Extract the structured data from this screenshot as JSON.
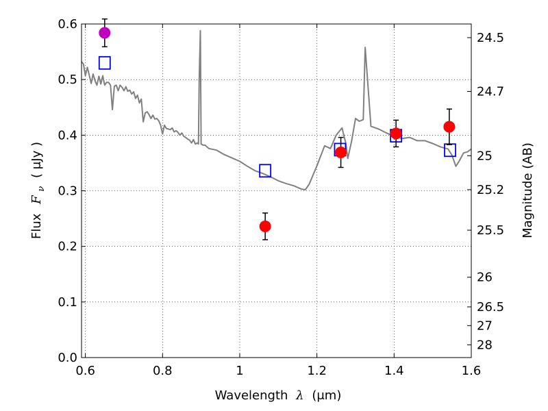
{
  "chart_data": {
    "type": "scatter",
    "xlabel_text": "Wavelength",
    "xlabel_symbol": "λ",
    "xlabel_unit": "(μm)",
    "ylabel_text": "Flux",
    "ylabel_symbol": "F",
    "ylabel_sub": "ν",
    "ylabel_unit": "( μJy )",
    "y2label": "Magnitude (AB)",
    "xlim": [
      0.59,
      1.6
    ],
    "ylim": [
      0.0,
      0.6
    ],
    "grid": true,
    "x_ticks": [
      {
        "value": 0.6,
        "label": "0.6"
      },
      {
        "value": 0.8,
        "label": "0.8"
      },
      {
        "value": 1.0,
        "label": "1"
      },
      {
        "value": 1.2,
        "label": "1.2"
      },
      {
        "value": 1.4,
        "label": "1.4"
      },
      {
        "value": 1.6,
        "label": "1.6"
      }
    ],
    "y_ticks": [
      {
        "value": 0.0,
        "label": "0.0"
      },
      {
        "value": 0.1,
        "label": "0.1"
      },
      {
        "value": 0.2,
        "label": "0.2"
      },
      {
        "value": 0.3,
        "label": "0.3"
      },
      {
        "value": 0.4,
        "label": "0.4"
      },
      {
        "value": 0.5,
        "label": "0.5"
      },
      {
        "value": 0.6,
        "label": "0.6"
      }
    ],
    "y2_ticks": [
      {
        "flux": 0.5754,
        "label": "24.5"
      },
      {
        "flux": 0.4786,
        "label": "24.7"
      },
      {
        "flux": 0.3631,
        "label": "25"
      },
      {
        "flux": 0.302,
        "label": "25.2"
      },
      {
        "flux": 0.2291,
        "label": "25.5"
      },
      {
        "flux": 0.1445,
        "label": "26"
      },
      {
        "flux": 0.0912,
        "label": "26.5"
      },
      {
        "flux": 0.0575,
        "label": "27"
      },
      {
        "flux": 0.0229,
        "label": "28"
      }
    ],
    "series": [
      {
        "kind": "line",
        "color": "#808080",
        "points": [
          [
            0.59,
            0.532
          ],
          [
            0.595,
            0.528
          ],
          [
            0.6,
            0.507
          ],
          [
            0.605,
            0.522
          ],
          [
            0.61,
            0.508
          ],
          [
            0.615,
            0.493
          ],
          [
            0.62,
            0.51
          ],
          [
            0.625,
            0.498
          ],
          [
            0.63,
            0.49
          ],
          [
            0.635,
            0.506
          ],
          [
            0.64,
            0.492
          ],
          [
            0.645,
            0.507
          ],
          [
            0.65,
            0.49
          ],
          [
            0.655,
            0.495
          ],
          [
            0.66,
            0.495
          ],
          [
            0.665,
            0.49
          ],
          [
            0.67,
            0.446
          ],
          [
            0.675,
            0.488
          ],
          [
            0.68,
            0.49
          ],
          [
            0.685,
            0.48
          ],
          [
            0.69,
            0.49
          ],
          [
            0.695,
            0.486
          ],
          [
            0.7,
            0.48
          ],
          [
            0.705,
            0.487
          ],
          [
            0.71,
            0.479
          ],
          [
            0.715,
            0.481
          ],
          [
            0.72,
            0.474
          ],
          [
            0.725,
            0.478
          ],
          [
            0.73,
            0.466
          ],
          [
            0.735,
            0.472
          ],
          [
            0.74,
            0.458
          ],
          [
            0.745,
            0.465
          ],
          [
            0.75,
            0.424
          ],
          [
            0.755,
            0.44
          ],
          [
            0.76,
            0.442
          ],
          [
            0.765,
            0.437
          ],
          [
            0.77,
            0.43
          ],
          [
            0.775,
            0.436
          ],
          [
            0.78,
            0.429
          ],
          [
            0.785,
            0.43
          ],
          [
            0.79,
            0.426
          ],
          [
            0.795,
            0.418
          ],
          [
            0.8,
            0.402
          ],
          [
            0.805,
            0.418
          ],
          [
            0.81,
            0.412
          ],
          [
            0.815,
            0.411
          ],
          [
            0.82,
            0.41
          ],
          [
            0.825,
            0.413
          ],
          [
            0.83,
            0.406
          ],
          [
            0.835,
            0.408
          ],
          [
            0.84,
            0.405
          ],
          [
            0.845,
            0.4
          ],
          [
            0.85,
            0.404
          ],
          [
            0.855,
            0.398
          ],
          [
            0.86,
            0.396
          ],
          [
            0.865,
            0.393
          ],
          [
            0.87,
            0.391
          ],
          [
            0.875,
            0.386
          ],
          [
            0.88,
            0.392
          ],
          [
            0.885,
            0.384
          ],
          [
            0.89,
            0.386
          ],
          [
            0.893,
            0.384
          ],
          [
            0.895,
            0.5
          ],
          [
            0.898,
            0.588
          ],
          [
            0.9,
            0.384
          ],
          [
            0.905,
            0.382
          ],
          [
            0.91,
            0.382
          ],
          [
            0.92,
            0.376
          ],
          [
            0.94,
            0.373
          ],
          [
            0.96,
            0.365
          ],
          [
            0.98,
            0.359
          ],
          [
            1.0,
            0.353
          ],
          [
            1.02,
            0.344
          ],
          [
            1.04,
            0.336
          ],
          [
            1.06,
            0.331
          ],
          [
            1.08,
            0.325
          ],
          [
            1.1,
            0.318
          ],
          [
            1.12,
            0.313
          ],
          [
            1.14,
            0.309
          ],
          [
            1.16,
            0.303
          ],
          [
            1.17,
            0.302
          ],
          [
            1.18,
            0.312
          ],
          [
            1.2,
            0.345
          ],
          [
            1.22,
            0.381
          ],
          [
            1.235,
            0.376
          ],
          [
            1.25,
            0.4
          ],
          [
            1.265,
            0.413
          ],
          [
            1.275,
            0.385
          ],
          [
            1.28,
            0.358
          ],
          [
            1.29,
            0.39
          ],
          [
            1.3,
            0.43
          ],
          [
            1.31,
            0.425
          ],
          [
            1.32,
            0.428
          ],
          [
            1.325,
            0.558
          ],
          [
            1.34,
            0.416
          ],
          [
            1.36,
            0.411
          ],
          [
            1.38,
            0.404
          ],
          [
            1.4,
            0.398
          ],
          [
            1.42,
            0.394
          ],
          [
            1.44,
            0.396
          ],
          [
            1.46,
            0.39
          ],
          [
            1.48,
            0.39
          ],
          [
            1.5,
            0.385
          ],
          [
            1.52,
            0.379
          ],
          [
            1.54,
            0.375
          ],
          [
            1.55,
            0.364
          ],
          [
            1.56,
            0.344
          ],
          [
            1.57,
            0.355
          ],
          [
            1.58,
            0.368
          ],
          [
            1.59,
            0.37
          ],
          [
            1.6,
            0.375
          ]
        ]
      },
      {
        "kind": "open-square",
        "color": "#0000ff",
        "points": [
          [
            0.65,
            0.53
          ],
          [
            1.066,
            0.336
          ],
          [
            1.26,
            0.374
          ],
          [
            1.405,
            0.399
          ],
          [
            1.545,
            0.373
          ]
        ]
      },
      {
        "kind": "filled-circle",
        "color": "#ff0000",
        "points": [
          {
            "x": 1.066,
            "y": 0.236,
            "err": 0.024
          },
          {
            "x": 1.262,
            "y": 0.369,
            "err": 0.027
          },
          {
            "x": 1.405,
            "y": 0.403,
            "err": 0.024
          },
          {
            "x": 1.543,
            "y": 0.415,
            "err": 0.032
          }
        ]
      },
      {
        "kind": "filled-circle",
        "color": "#bf00bf",
        "points": [
          {
            "x": 0.65,
            "y": 0.584,
            "err": 0.025
          }
        ]
      }
    ]
  }
}
